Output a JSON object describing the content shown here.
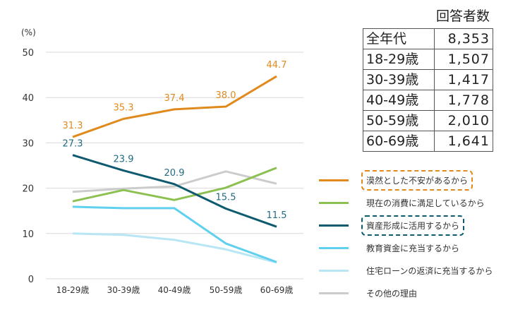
{
  "chart_data": {
    "type": "line",
    "ylabel": "(%)",
    "ylim": [
      0,
      50
    ],
    "yticks": [
      0,
      10,
      20,
      30,
      40,
      50
    ],
    "grid": true,
    "legend_position": "right",
    "categories": [
      "18-29歳",
      "30-39歳",
      "40-49歳",
      "50-59歳",
      "60-69歳"
    ],
    "series": [
      {
        "name": "漠然とした不安があるから",
        "color": "#e08a1e",
        "values": [
          31.3,
          35.3,
          37.4,
          38.0,
          44.7
        ],
        "labels": [
          "31.3",
          "35.3",
          "37.4",
          "38.0",
          "44.7"
        ],
        "highlight": true
      },
      {
        "name": "現在の消費に満足しているから",
        "color": "#8cc152",
        "values": [
          17.1,
          19.6,
          17.4,
          20.1,
          24.5
        ]
      },
      {
        "name": "資産形成に活用するから",
        "color": "#0e5a6e",
        "values": [
          27.3,
          23.9,
          20.9,
          15.5,
          11.5
        ],
        "labels": [
          "27.3",
          "23.9",
          "20.9",
          "15.5",
          "11.5"
        ],
        "highlight": true
      },
      {
        "name": "教育資金に充当するから",
        "color": "#5fd0ee",
        "values": [
          15.9,
          15.6,
          15.6,
          7.8,
          3.7
        ]
      },
      {
        "name": "住宅ローンの返済に充当するから",
        "color": "#b8e6f5",
        "values": [
          10.0,
          9.7,
          8.6,
          6.5,
          3.6
        ]
      },
      {
        "name": "その他の理由",
        "color": "#cccccc",
        "values": [
          19.2,
          19.9,
          20.4,
          23.7,
          21.0
        ]
      }
    ]
  },
  "respondents": {
    "title": "回答者数",
    "rows": [
      {
        "label": "全年代",
        "value": "8,353"
      },
      {
        "label": "18-29歳",
        "value": "1,507"
      },
      {
        "label": "30-39歳",
        "value": "1,417"
      },
      {
        "label": "40-49歳",
        "value": "1,778"
      },
      {
        "label": "50-59歳",
        "value": "2,010"
      },
      {
        "label": "60-69歳",
        "value": "1,641"
      }
    ]
  }
}
